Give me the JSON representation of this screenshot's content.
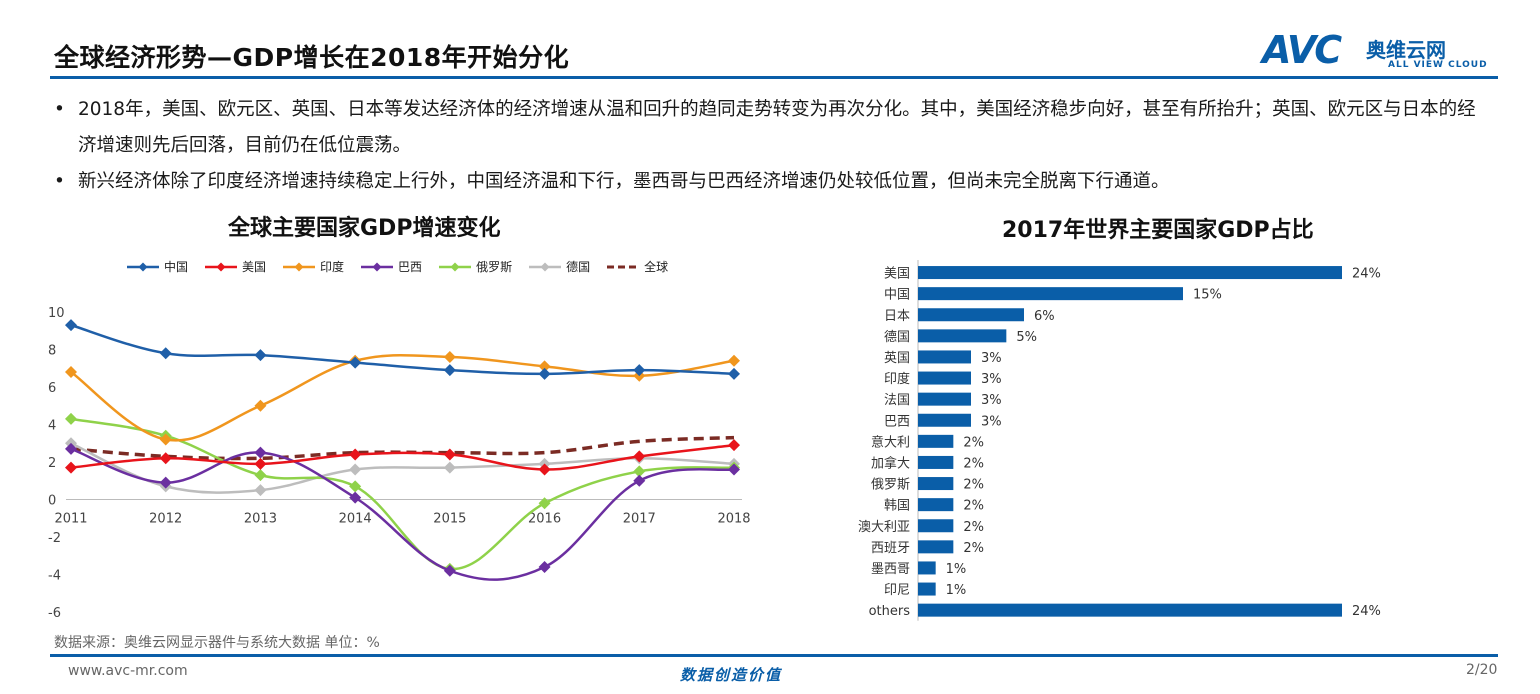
{
  "header": {
    "title": "全球经济形势—GDP增长在2018年开始分化",
    "logo_mark": "AVC",
    "logo_cn": "奥维云网",
    "logo_en": "ALL VIEW CLOUD"
  },
  "bullets": [
    "2018年，美国、欧元区、英国、日本等发达经济体的经济增速从温和回升的趋同走势转变为再次分化。其中，美国经济稳步向好，甚至有所抬升；英国、欧元区与日本的经济增速则先后回落，目前仍在低位震荡。",
    "新兴经济体除了印度经济增速持续稳定上行外，中国经济温和下行，墨西哥与巴西经济增速仍处较低位置，但尚未完全脱离下行通道。"
  ],
  "bullet_mark": "•",
  "chart_data": [
    {
      "type": "line",
      "title": "全球主要国家GDP增速变化",
      "x": [
        "2011",
        "2012",
        "2013",
        "2014",
        "2015",
        "2016",
        "2017",
        "2018"
      ],
      "ylim": [
        -6,
        10
      ],
      "yticks": [
        10,
        8,
        6,
        4,
        2,
        0,
        -2,
        -4,
        -6
      ],
      "grid": false,
      "legend_position": "top",
      "series": [
        {
          "name": "中国",
          "color": "#1f5fa8",
          "marker": "diamond",
          "dashed": false,
          "values": [
            9.3,
            7.8,
            7.7,
            7.3,
            6.9,
            6.7,
            6.9,
            6.7
          ]
        },
        {
          "name": "美国",
          "color": "#e8141b",
          "marker": "diamond",
          "dashed": false,
          "values": [
            1.7,
            2.2,
            1.9,
            2.4,
            2.4,
            1.6,
            2.3,
            2.9
          ]
        },
        {
          "name": "印度",
          "color": "#f0961e",
          "marker": "diamond",
          "dashed": false,
          "values": [
            6.8,
            3.2,
            5.0,
            7.4,
            7.6,
            7.1,
            6.6,
            7.4
          ]
        },
        {
          "name": "巴西",
          "color": "#6b2fa0",
          "marker": "diamond",
          "dashed": false,
          "values": [
            2.7,
            0.9,
            2.5,
            0.1,
            -3.8,
            -3.6,
            1.0,
            1.6
          ]
        },
        {
          "name": "俄罗斯",
          "color": "#8fd24a",
          "marker": "diamond",
          "dashed": false,
          "values": [
            4.3,
            3.4,
            1.3,
            0.7,
            -3.7,
            -0.2,
            1.5,
            1.7
          ]
        },
        {
          "name": "德国",
          "color": "#bdbdbd",
          "marker": "diamond",
          "dashed": false,
          "values": [
            3.0,
            0.7,
            0.5,
            1.6,
            1.7,
            1.9,
            2.2,
            1.9
          ]
        },
        {
          "name": "全球",
          "color": "#7b2b24",
          "marker": "none",
          "dashed": true,
          "values": [
            2.7,
            2.3,
            2.2,
            2.5,
            2.5,
            2.5,
            3.1,
            3.3
          ]
        }
      ]
    },
    {
      "type": "bar",
      "orientation": "horizontal",
      "title": "2017年世界主要国家GDP占比",
      "color": "#0a5ea8",
      "categories": [
        "美国",
        "中国",
        "日本",
        "德国",
        "英国",
        "印度",
        "法国",
        "巴西",
        "意大利",
        "加拿大",
        "俄罗斯",
        "韩国",
        "澳大利亚",
        "西班牙",
        "墨西哥",
        "印尼",
        "others"
      ],
      "values": [
        24,
        15,
        6,
        5,
        3,
        3,
        3,
        3,
        2,
        2,
        2,
        2,
        2,
        2,
        1,
        1,
        24
      ],
      "data_labels": [
        "24%",
        "15%",
        "6%",
        "5%",
        "3%",
        "3%",
        "3%",
        "3%",
        "2%",
        "2%",
        "2%",
        "2%",
        "2%",
        "2%",
        "1%",
        "1%",
        "24%"
      ],
      "ylim": [
        0,
        24
      ]
    }
  ],
  "footer": {
    "source": "数据来源：奥维云网显示器件与系统大数据   单位：%",
    "url": "www.avc-mr.com",
    "slogan": "数据创造价值",
    "page": "2/20"
  }
}
